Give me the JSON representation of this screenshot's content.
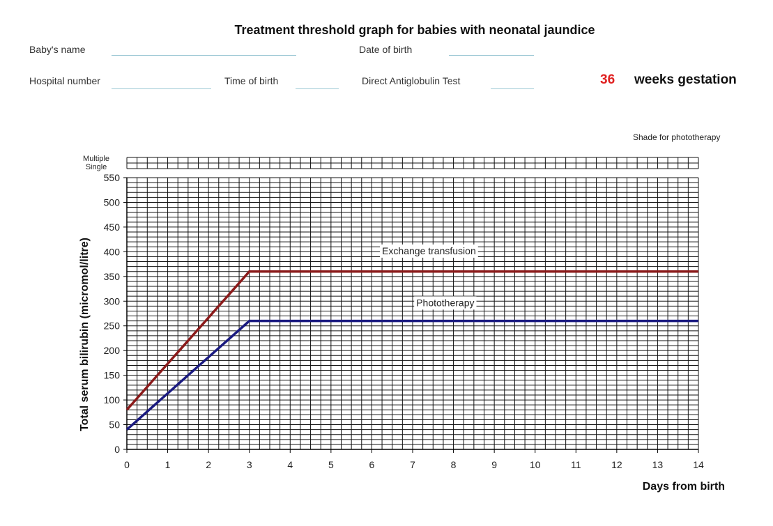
{
  "form": {
    "title": "Treatment threshold graph for babies with neonatal jaundice",
    "baby_name_label": "Baby's name",
    "date_of_birth_label": "Date of birth",
    "hospital_number_label": "Hospital number",
    "time_of_birth_label": "Time of birth",
    "dat_label": "Direct Antiglobulin Test",
    "gestation_weeks": "36",
    "gestation_label": "weeks gestation",
    "shade_label": "Shade for phototherapy",
    "multiple_label": "Multiple",
    "single_label": "Single"
  },
  "chart_data": {
    "type": "line",
    "title": "Treatment threshold graph for babies with neonatal jaundice",
    "xlabel": "Days from birth",
    "ylabel": "Total serum bilirubin  (micromol/litre)",
    "xlim": [
      0,
      14
    ],
    "ylim": [
      0,
      550
    ],
    "x_ticks": [
      0,
      1,
      2,
      3,
      4,
      5,
      6,
      7,
      8,
      9,
      10,
      11,
      12,
      13,
      14
    ],
    "y_ticks": [
      0,
      50,
      100,
      150,
      200,
      250,
      300,
      350,
      400,
      450,
      500,
      550
    ],
    "grid": true,
    "series": [
      {
        "name": "Exchange transfusion",
        "color": "#8b1a1a",
        "x": [
          0,
          3,
          14
        ],
        "y": [
          80,
          360,
          360
        ]
      },
      {
        "name": "Phototherapy",
        "color": "#1a1a80",
        "x": [
          0,
          3,
          14
        ],
        "y": [
          40,
          260,
          260
        ]
      }
    ]
  }
}
